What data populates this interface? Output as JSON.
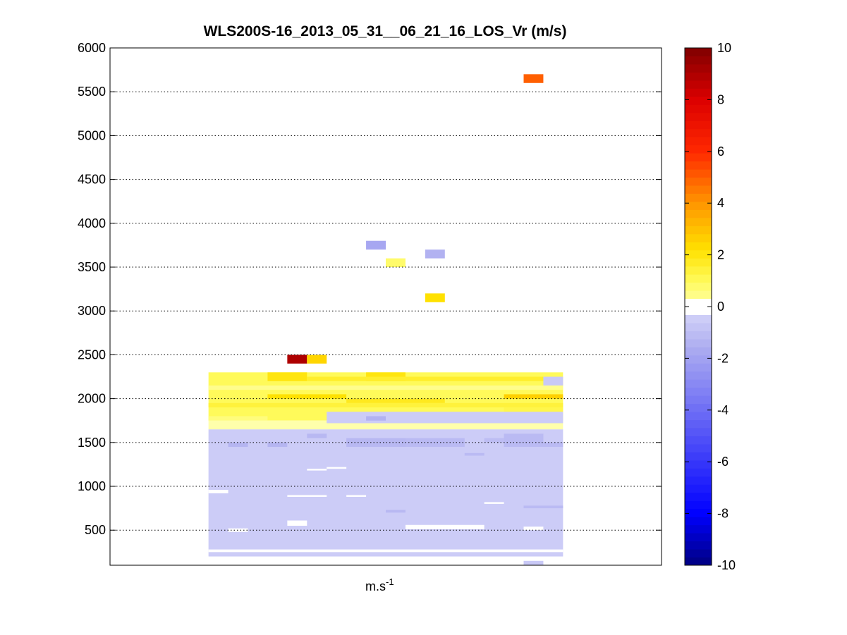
{
  "chart_data": {
    "type": "heatmap",
    "title": "WLS200S-16_2013_05_31__06_21_16_LOS_Vr (m/s)",
    "xlabel_base": "m.s",
    "xlabel_exp": "-1",
    "ylabel": "",
    "ylim": [
      100,
      6000
    ],
    "yticks": [
      500,
      1000,
      1500,
      2000,
      2500,
      3000,
      3500,
      4000,
      4500,
      5000,
      5500,
      6000
    ],
    "grid": "horizontal dotted",
    "x_columns": 28,
    "xlim": [
      0,
      28
    ],
    "colorbar": {
      "min": -10,
      "max": 10,
      "ticks": [
        -10,
        -8,
        -6,
        -4,
        -2,
        0,
        2,
        4,
        6,
        8,
        10
      ],
      "colormap": "jet-like, white near zero"
    },
    "cells": [
      {
        "x0": 21,
        "x1": 22,
        "y0": 5600,
        "y1": 5700,
        "v": 5
      },
      {
        "x0": 13,
        "x1": 14,
        "y0": 3700,
        "y1": 3800,
        "v": -1.8
      },
      {
        "x0": 16,
        "x1": 17,
        "y0": 3600,
        "y1": 3700,
        "v": -1.4
      },
      {
        "x0": 14,
        "x1": 15,
        "y0": 3500,
        "y1": 3600,
        "v": 0.8
      },
      {
        "x0": 16,
        "x1": 17,
        "y0": 3100,
        "y1": 3200,
        "v": 2.2
      },
      {
        "x0": 9,
        "x1": 10,
        "y0": 2400,
        "y1": 2500,
        "v": 9
      },
      {
        "x0": 10,
        "x1": 11,
        "y0": 2400,
        "y1": 2500,
        "v": 2.5
      },
      {
        "x0": 5,
        "x1": 23,
        "y0": 200,
        "y1": 1650,
        "v": -0.5
      },
      {
        "x0": 5,
        "x1": 23,
        "y0": 1750,
        "y1": 2300,
        "v": 1.0
      },
      {
        "x0": 8,
        "x1": 10,
        "y0": 2200,
        "y1": 2300,
        "v": 2.0
      },
      {
        "x0": 13,
        "x1": 15,
        "y0": 2200,
        "y1": 2300,
        "v": 2.0
      },
      {
        "x0": 10,
        "x1": 22,
        "y0": 2200,
        "y1": 2250,
        "v": 1.6
      },
      {
        "x0": 5,
        "x1": 23,
        "y0": 2100,
        "y1": 2150,
        "v": 0.4
      },
      {
        "x0": 8,
        "x1": 12,
        "y0": 2000,
        "y1": 2050,
        "v": 2.2
      },
      {
        "x0": 20,
        "x1": 23,
        "y0": 2000,
        "y1": 2050,
        "v": 2.6
      },
      {
        "x0": 12,
        "x1": 17,
        "y0": 1950,
        "y1": 2000,
        "v": 1.8
      },
      {
        "x0": 5,
        "x1": 23,
        "y0": 1900,
        "y1": 1950,
        "v": 1.4
      },
      {
        "x0": 5,
        "x1": 8,
        "y0": 1750,
        "y1": 1800,
        "v": 0.6
      },
      {
        "x0": 20,
        "x1": 23,
        "y0": 1850,
        "y1": 1900,
        "v": 1.2
      },
      {
        "x0": 5,
        "x1": 23,
        "y0": 1650,
        "y1": 1750,
        "v": 0.05
      },
      {
        "x0": 11,
        "x1": 23,
        "y0": 1720,
        "y1": 1850,
        "v": -0.5
      },
      {
        "x0": 22,
        "x1": 23,
        "y0": 2150,
        "y1": 2250,
        "v": -0.6
      },
      {
        "x0": 6,
        "x1": 7,
        "y0": 1450,
        "y1": 1500,
        "v": -1.3
      },
      {
        "x0": 8,
        "x1": 9,
        "y0": 1450,
        "y1": 1500,
        "v": -1.3
      },
      {
        "x0": 10,
        "x1": 11,
        "y0": 1550,
        "y1": 1600,
        "v": -1.2
      },
      {
        "x0": 12,
        "x1": 15,
        "y0": 1450,
        "y1": 1550,
        "v": -1.2
      },
      {
        "x0": 15,
        "x1": 18,
        "y0": 1450,
        "y1": 1550,
        "v": -1.1
      },
      {
        "x0": 19,
        "x1": 20,
        "y0": 1500,
        "y1": 1550,
        "v": -1.0
      },
      {
        "x0": 20,
        "x1": 22,
        "y0": 1450,
        "y1": 1600,
        "v": -1.1
      },
      {
        "x0": 22,
        "x1": 23,
        "y0": 1450,
        "y1": 1500,
        "v": -1.1
      },
      {
        "x0": 13,
        "x1": 14,
        "y0": 1750,
        "y1": 1800,
        "v": -1.4
      },
      {
        "x0": 14,
        "x1": 15,
        "y0": 700,
        "y1": 730,
        "v": -1.2
      },
      {
        "x0": 21,
        "x1": 23,
        "y0": 750,
        "y1": 780,
        "v": -1.1
      },
      {
        "x0": 18,
        "x1": 19,
        "y0": 1350,
        "y1": 1380,
        "v": -1.1
      },
      {
        "x0": 5,
        "x1": 6,
        "y0": 920,
        "y1": 960,
        "v": 0
      },
      {
        "x0": 6,
        "x1": 7,
        "y0": 480,
        "y1": 520,
        "v": 0
      },
      {
        "x0": 9,
        "x1": 10,
        "y0": 550,
        "y1": 610,
        "v": 0
      },
      {
        "x0": 9,
        "x1": 11,
        "y0": 880,
        "y1": 900,
        "v": 0
      },
      {
        "x0": 10,
        "x1": 11,
        "y0": 1180,
        "y1": 1200,
        "v": 0
      },
      {
        "x0": 11,
        "x1": 12,
        "y0": 1200,
        "y1": 1220,
        "v": 0
      },
      {
        "x0": 12,
        "x1": 13,
        "y0": 880,
        "y1": 900,
        "v": 0
      },
      {
        "x0": 15,
        "x1": 19,
        "y0": 510,
        "y1": 560,
        "v": 0
      },
      {
        "x0": 19,
        "x1": 20,
        "y0": 800,
        "y1": 820,
        "v": 0
      },
      {
        "x0": 21,
        "x1": 22,
        "y0": 500,
        "y1": 540,
        "v": 0
      },
      {
        "x0": 5,
        "x1": 23,
        "y0": 250,
        "y1": 280,
        "v": 0
      },
      {
        "x0": 21,
        "x1": 22,
        "y0": 100,
        "y1": 150,
        "v": -0.6
      }
    ]
  }
}
